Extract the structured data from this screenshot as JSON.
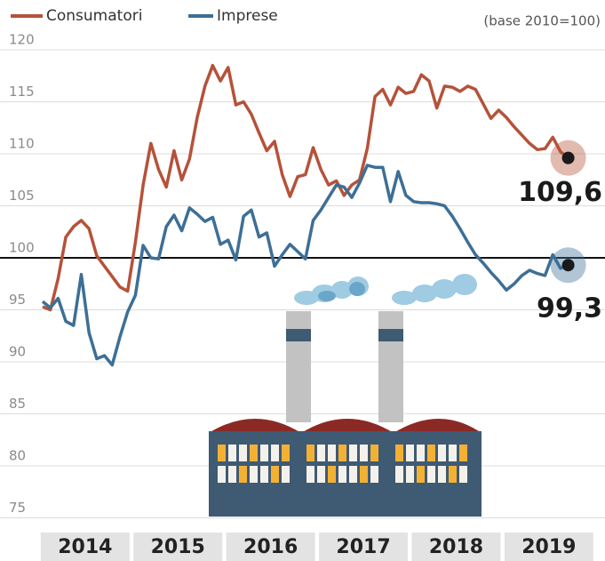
{
  "chart_data": {
    "type": "line",
    "note": "(base 2010=100)",
    "categories": [
      null,
      null,
      null,
      null,
      null,
      "2014",
      null,
      null,
      null,
      null,
      null,
      null,
      null,
      null,
      null,
      null,
      null,
      "2015",
      null,
      null,
      null,
      null,
      null,
      null,
      null,
      null,
      null,
      null,
      null,
      "2016",
      null,
      null,
      null,
      null,
      null,
      null,
      null,
      null,
      null,
      null,
      null,
      "2017",
      null,
      null,
      null,
      null,
      null,
      null,
      null,
      null,
      null,
      null,
      null,
      "2018",
      null,
      null,
      null,
      null,
      null,
      null,
      null,
      null,
      null,
      null,
      null,
      "2019",
      null,
      null,
      null
    ],
    "series": [
      {
        "name": "Consumatori",
        "color": "#b5523a",
        "values": [
          95.3,
          95.0,
          98.0,
          102.0,
          103.0,
          103.6,
          102.8,
          100.2,
          99.2,
          98.2,
          97.2,
          96.8,
          101.5,
          107.0,
          111.0,
          108.5,
          106.8,
          110.3,
          107.5,
          109.5,
          113.5,
          116.5,
          118.5,
          117.0,
          118.3,
          114.7,
          115.0,
          113.8,
          112.0,
          110.3,
          111.2,
          108.0,
          105.9,
          107.8,
          108.0,
          110.6,
          108.5,
          107.0,
          107.4,
          106.0,
          107.0,
          107.5,
          110.5,
          115.5,
          116.2,
          114.7,
          116.4,
          115.8,
          116.0,
          117.6,
          117.0,
          114.4,
          116.5,
          116.4,
          116.0,
          116.5,
          116.2,
          114.8,
          113.4,
          114.2,
          113.5,
          112.6,
          111.8,
          111.0,
          110.4,
          110.5,
          111.6,
          110.2,
          109.6
        ],
        "value_labels": [
          null,
          null,
          null,
          null,
          null,
          null,
          null,
          null,
          null,
          null,
          null,
          null,
          null,
          null,
          null,
          null,
          null,
          null,
          null,
          null,
          null,
          null,
          null,
          null,
          null,
          null,
          null,
          null,
          null,
          null,
          null,
          null,
          null,
          null,
          null,
          null,
          null,
          null,
          null,
          null,
          null,
          null,
          null,
          null,
          null,
          null,
          null,
          null,
          null,
          null,
          null,
          null,
          null,
          null,
          null,
          null,
          null,
          null,
          null,
          null,
          null,
          null,
          null,
          null,
          null,
          null,
          null,
          null,
          "109,6"
        ]
      },
      {
        "name": "Imprese",
        "color": "#3d6f96",
        "values": [
          95.8,
          95.2,
          96.1,
          93.9,
          93.5,
          98.4,
          92.8,
          90.3,
          90.6,
          89.7,
          92.4,
          94.8,
          96.4,
          101.2,
          100.0,
          99.9,
          103.0,
          104.1,
          102.6,
          104.8,
          104.2,
          103.5,
          103.9,
          101.3,
          101.7,
          99.8,
          104.0,
          104.6,
          102.0,
          102.4,
          99.2,
          100.3,
          101.3,
          100.6,
          99.9,
          103.6,
          104.6,
          105.8,
          107.0,
          106.8,
          105.8,
          107.2,
          108.9,
          108.7,
          108.7,
          105.4,
          108.3,
          106.0,
          105.4,
          105.3,
          105.3,
          105.2,
          105.0,
          104.0,
          102.8,
          101.5,
          100.3,
          99.5,
          98.6,
          97.8,
          96.9,
          97.5,
          98.3,
          98.8,
          98.5,
          98.3,
          100.3,
          99.0,
          99.3
        ],
        "value_labels": [
          null,
          null,
          null,
          null,
          null,
          null,
          null,
          null,
          null,
          null,
          null,
          null,
          null,
          null,
          null,
          null,
          null,
          null,
          null,
          null,
          null,
          null,
          null,
          null,
          null,
          null,
          null,
          null,
          null,
          null,
          null,
          null,
          null,
          null,
          null,
          null,
          null,
          null,
          null,
          null,
          null,
          null,
          null,
          null,
          null,
          null,
          null,
          null,
          null,
          null,
          null,
          null,
          null,
          null,
          null,
          null,
          null,
          null,
          null,
          null,
          null,
          null,
          null,
          null,
          null,
          null,
          null,
          null,
          "99,3"
        ]
      }
    ],
    "ylim": [
      75,
      120
    ],
    "yticks": [
      75,
      80,
      85,
      90,
      95,
      100,
      105,
      110,
      115,
      120
    ],
    "grid": true,
    "hline": 100
  }
}
